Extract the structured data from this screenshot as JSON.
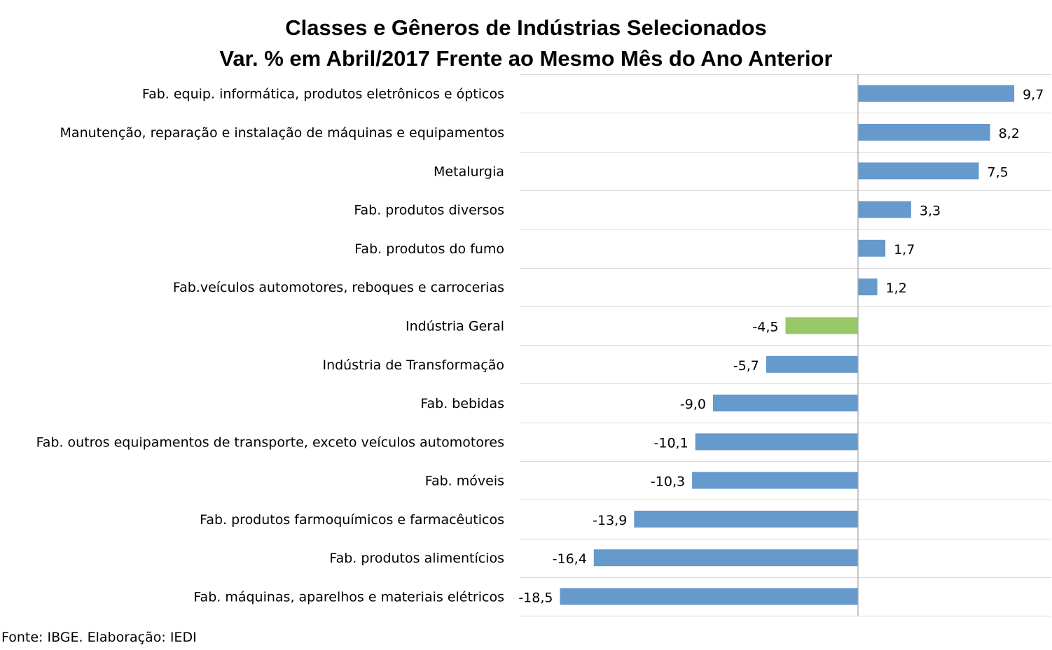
{
  "chart_data": {
    "type": "bar",
    "orientation": "horizontal",
    "title": "Classes e Gêneros de Indústrias Selecionados",
    "subtitle": "Var. % em Abril/2017 Frente ao Mesmo Mês do Ano Anterior",
    "categories": [
      "Fab. equip. informática, produtos eletrônicos e ópticos",
      "Manutenção, reparação e instalação de máquinas e equipamentos",
      "Metalurgia",
      "Fab. produtos diversos",
      "Fab. produtos do fumo",
      "Fab.veículos automotores, reboques e carrocerias",
      "Indústria Geral",
      "Indústria de Transformação",
      "Fab. bebidas",
      "Fab. outros equipamentos de transporte, exceto veículos automotores",
      "Fab. móveis",
      "Fab. produtos farmoquímicos e farmacêuticos",
      "Fab. produtos alimentícios",
      "Fab. máquinas, aparelhos e materiais elétricos"
    ],
    "values": [
      9.7,
      8.2,
      7.5,
      3.3,
      1.7,
      1.2,
      -4.5,
      -5.7,
      -9.0,
      -10.1,
      -10.3,
      -13.9,
      -16.4,
      -18.5
    ],
    "value_labels": [
      "9,7",
      "8,2",
      "7,5",
      "3,3",
      "1,7",
      "1,2",
      "-4,5",
      "-5,7",
      "-9,0",
      "-10,1",
      "-10,3",
      "-13,9",
      "-16,4",
      "-18,5"
    ],
    "colors": {
      "default": "#6699CC",
      "highlight": "#99C866",
      "gridline": "#D9D9D9",
      "axis": "#A6A6A6"
    },
    "highlight_category": "Indústria Geral",
    "xlim": [
      -21,
      12
    ],
    "grid": true,
    "legend": "none",
    "xlabel": "",
    "ylabel": ""
  },
  "source": "Fonte: IBGE. Elaboração: IEDI"
}
